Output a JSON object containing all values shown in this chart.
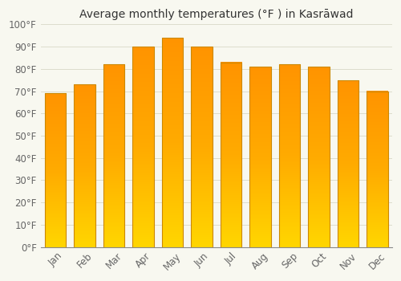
{
  "title": "Average monthly temperatures (°F ) in Kasrāwad",
  "months": [
    "Jan",
    "Feb",
    "Mar",
    "Apr",
    "May",
    "Jun",
    "Jul",
    "Aug",
    "Sep",
    "Oct",
    "Nov",
    "Dec"
  ],
  "values": [
    69,
    73,
    82,
    90,
    94,
    90,
    83,
    81,
    82,
    81,
    75,
    70
  ],
  "bar_color": "#FFAA00",
  "bar_edge_color": "#CC8800",
  "ylim": [
    0,
    100
  ],
  "yticks": [
    0,
    10,
    20,
    30,
    40,
    50,
    60,
    70,
    80,
    90,
    100
  ],
  "ytick_labels": [
    "0°F",
    "10°F",
    "20°F",
    "30°F",
    "40°F",
    "50°F",
    "60°F",
    "70°F",
    "80°F",
    "90°F",
    "100°F"
  ],
  "background_color": "#f8f8f0",
  "grid_color": "#ddddcc",
  "title_fontsize": 10,
  "tick_fontsize": 8.5
}
